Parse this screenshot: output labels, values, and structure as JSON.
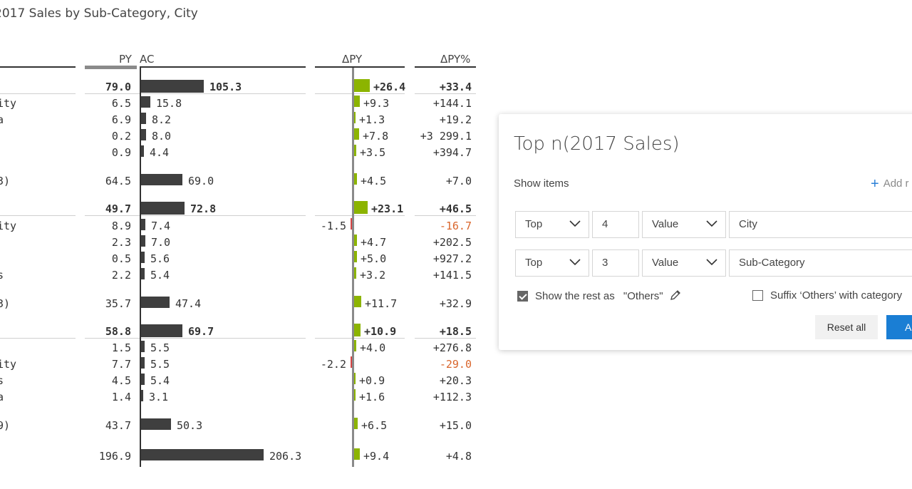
{
  "report": {
    "title": "2017 Sales by Sub-Category, City",
    "headers": {
      "py": "PY",
      "ac": "AC",
      "delta_py": "ΔPY",
      "delta_py_pct": "ΔPY%"
    }
  },
  "chart_data": {
    "type": "table",
    "title": "2017 Sales by Sub-Category, City",
    "columns": [
      "",
      "PY",
      "AC",
      "ΔPY",
      "ΔPY%"
    ],
    "rows": [
      {
        "label": "",
        "py": "79.0",
        "ac": "105.3",
        "dpy": "+26.4",
        "dpyp": "+33.4",
        "bold": true,
        "ac_v": 105.3,
        "dpy_v": 26.4
      },
      {
        "label": "ity",
        "py": "6.5",
        "ac": "15.8",
        "dpy": "+9.3",
        "dpyp": "+144.1",
        "ac_v": 15.8,
        "dpy_v": 9.3
      },
      {
        "label": "a",
        "py": "6.9",
        "ac": "8.2",
        "dpy": "+1.3",
        "dpyp": "+19.2",
        "ac_v": 8.2,
        "dpy_v": 1.3
      },
      {
        "label": "",
        "py": "0.2",
        "ac": "8.0",
        "dpy": "+7.8",
        "dpyp": "+3 299.1",
        "ac_v": 8.0,
        "dpy_v": 7.8
      },
      {
        "label": "",
        "py": "0.9",
        "ac": "4.4",
        "dpy": "+3.5",
        "dpyp": "+394.7",
        "ac_v": 4.4,
        "dpy_v": 3.5
      },
      {
        "label": "3)",
        "py": "64.5",
        "ac": "69.0",
        "dpy": "+4.5",
        "dpyp": "+7.0",
        "ac_v": 69.0,
        "dpy_v": 4.5
      },
      {
        "label": "",
        "py": "49.7",
        "ac": "72.8",
        "dpy": "+23.1",
        "dpyp": "+46.5",
        "bold": true,
        "ac_v": 72.8,
        "dpy_v": 23.1
      },
      {
        "label": "ity",
        "py": "8.9",
        "ac": "7.4",
        "dpy": "-1.5",
        "dpyp": "-16.7",
        "ac_v": 7.4,
        "dpy_v": -1.5
      },
      {
        "label": "",
        "py": "2.3",
        "ac": "7.0",
        "dpy": "+4.7",
        "dpyp": "+202.5",
        "ac_v": 7.0,
        "dpy_v": 4.7
      },
      {
        "label": "",
        "py": "0.5",
        "ac": "5.6",
        "dpy": "+5.0",
        "dpyp": "+927.2",
        "ac_v": 5.6,
        "dpy_v": 5.0
      },
      {
        "label": "s",
        "py": "2.2",
        "ac": "5.4",
        "dpy": "+3.2",
        "dpyp": "+141.5",
        "ac_v": 5.4,
        "dpy_v": 3.2
      },
      {
        "label": "3)",
        "py": "35.7",
        "ac": "47.4",
        "dpy": "+11.7",
        "dpyp": "+32.9",
        "ac_v": 47.4,
        "dpy_v": 11.7
      },
      {
        "label": "",
        "py": "58.8",
        "ac": "69.7",
        "dpy": "+10.9",
        "dpyp": "+18.5",
        "bold": true,
        "ac_v": 69.7,
        "dpy_v": 10.9
      },
      {
        "label": "",
        "py": "1.5",
        "ac": "5.5",
        "dpy": "+4.0",
        "dpyp": "+276.8",
        "ac_v": 5.5,
        "dpy_v": 4.0
      },
      {
        "label": "ity",
        "py": "7.7",
        "ac": "5.5",
        "dpy": "-2.2",
        "dpyp": "-29.0",
        "ac_v": 5.5,
        "dpy_v": -2.2
      },
      {
        "label": "s",
        "py": "4.5",
        "ac": "5.4",
        "dpy": "+0.9",
        "dpyp": "+20.3",
        "ac_v": 5.4,
        "dpy_v": 0.9
      },
      {
        "label": "a",
        "py": "1.4",
        "ac": "3.1",
        "dpy": "+1.6",
        "dpyp": "+112.3",
        "ac_v": 3.1,
        "dpy_v": 1.6
      },
      {
        "label": "9)",
        "py": "43.7",
        "ac": "50.3",
        "dpy": "+6.5",
        "dpyp": "+15.0",
        "ac_v": 50.3,
        "dpy_v": 6.5
      },
      {
        "label": "",
        "py": "196.9",
        "ac": "206.3",
        "dpy": "+9.4",
        "dpyp": "+4.8",
        "ac_v": 206.3,
        "dpy_v": 9.4
      }
    ]
  },
  "colors": {
    "ac_bar": "#3f3f3f",
    "positive": "#8cb400",
    "negative": "#d64545",
    "negative_text": "#d9652b",
    "accent": "#1a7ed4"
  },
  "dialog": {
    "title": "Top n(2017 Sales)",
    "show_items_label": "Show items",
    "add_label": "Add r",
    "rules": [
      {
        "direction": "Top",
        "count": "4",
        "mode": "Value",
        "field": "City"
      },
      {
        "direction": "Top",
        "count": "3",
        "mode": "Value",
        "field": "Sub-Category"
      }
    ],
    "show_rest_label": "Show the rest as",
    "show_rest_checked": true,
    "others_name": "\"Others\"",
    "suffix_label": "Suffix ‘Others’ with category",
    "suffix_checked": false,
    "reset_label": "Reset all",
    "apply_label": "A"
  }
}
